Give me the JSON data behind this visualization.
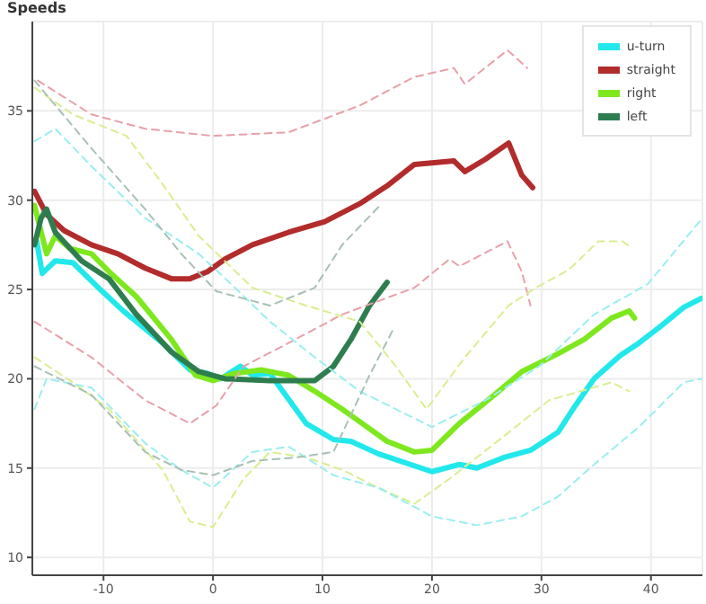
{
  "chart_data": {
    "type": "line",
    "title": "Speeds",
    "xlim": [
      -16.5,
      44.7
    ],
    "ylim": [
      9,
      40
    ],
    "xticks": [
      -10,
      0,
      10,
      20,
      30,
      40
    ],
    "yticks": [
      10,
      15,
      20,
      25,
      30,
      35
    ],
    "grid": true,
    "legend": "top right",
    "series": [
      {
        "name": "u-turn",
        "color": "#22e8ec",
        "x": [
          -16.1,
          -15.6,
          -14.4,
          -12.8,
          -10.3,
          -8.2,
          -4.6,
          -2.1,
          -0.5,
          0.7,
          2.5,
          3.6,
          5.2,
          8.5,
          11,
          12.6,
          15.1,
          20,
          22.5,
          24.1,
          26.6,
          29,
          31.5,
          33.1,
          34.8,
          37.2,
          38.9,
          41,
          43,
          44.6
        ],
        "values": [
          27.7,
          25.9,
          26.6,
          26.5,
          25,
          23.8,
          22,
          20.5,
          20.3,
          20,
          20.7,
          20.2,
          20.3,
          17.5,
          16.6,
          16.5,
          15.8,
          14.8,
          15.2,
          15,
          15.6,
          16,
          17,
          18.5,
          20,
          21.3,
          22,
          23,
          24,
          24.5
        ]
      },
      {
        "name": "straight",
        "color": "#b22c2c",
        "x": [
          -16.3,
          -15.2,
          -13.6,
          -11.1,
          -8.7,
          -6.2,
          -3.8,
          -2.1,
          -0.5,
          1.1,
          3.6,
          6.9,
          10.2,
          13.4,
          15.9,
          18.4,
          22,
          23,
          24.9,
          27,
          28.2,
          29.2
        ],
        "values": [
          30.5,
          29.2,
          28.3,
          27.5,
          27,
          26.2,
          25.6,
          25.6,
          26,
          26.7,
          27.5,
          28.2,
          28.8,
          29.8,
          30.8,
          32,
          32.2,
          31.6,
          32.3,
          33.2,
          31.4,
          30.7
        ]
      },
      {
        "name": "right",
        "color": "#7ee81e",
        "x": [
          -16.3,
          -15.2,
          -14.4,
          -13.1,
          -11.1,
          -9.5,
          -7,
          -3.8,
          -1.6,
          0,
          2,
          4.4,
          6.9,
          9.3,
          11.8,
          13.4,
          15.9,
          18.4,
          20,
          22.5,
          25.7,
          28.2,
          31.5,
          33.9,
          36.4,
          38,
          38.5
        ],
        "values": [
          29.7,
          27,
          28,
          27.3,
          27,
          26,
          24.6,
          22.2,
          20.2,
          19.9,
          20.3,
          20.5,
          20.2,
          19.3,
          18.3,
          17.6,
          16.5,
          15.9,
          16,
          17.5,
          19.1,
          20.4,
          21.4,
          22.2,
          23.4,
          23.8,
          23.4
        ]
      },
      {
        "name": "left",
        "color": "#2e7d4f",
        "x": [
          -16.3,
          -15.7,
          -15.2,
          -14.4,
          -12,
          -9.5,
          -7,
          -3.8,
          -1.3,
          1.1,
          5.2,
          9.3,
          11,
          12.6,
          14.3,
          15.9
        ],
        "values": [
          27.5,
          29,
          29.5,
          28.2,
          26.6,
          25.6,
          23.6,
          21.5,
          20.4,
          20,
          19.9,
          19.9,
          20.7,
          22.2,
          24.1,
          25.4
        ]
      },
      {
        "color": "#e8a0a8",
        "line_style": "dashed",
        "x": [
          -16,
          -11.1,
          -6.2,
          0,
          6.9,
          13.4,
          18.4,
          22,
          23,
          26.9,
          28.7
        ],
        "values": [
          36.7,
          34.8,
          34,
          33.6,
          33.8,
          35.3,
          36.9,
          37.4,
          36.5,
          38.4,
          37.4
        ]
      },
      {
        "color": "#e8a0a8",
        "line_style": "dashed",
        "x": [
          -16.3,
          -11.1,
          -6.2,
          -2.1,
          0.3,
          2.8,
          6.9,
          11.8,
          18.4,
          21.6,
          22.5,
          26.9,
          28.2,
          29
        ],
        "values": [
          23.2,
          21.2,
          18.8,
          17.5,
          18.5,
          20.7,
          22,
          23.6,
          25.1,
          26.7,
          26.3,
          27.7,
          26,
          24.1
        ]
      },
      {
        "color": "#d8ee90",
        "line_style": "dashed",
        "x": [
          -16.3,
          -12.8,
          -7.9,
          -4.6,
          -1.3,
          3.6,
          8.5,
          13.4,
          16.7,
          19.5,
          23,
          27,
          29.5,
          32.5,
          35.2,
          37.4,
          38.1
        ],
        "values": [
          36.3,
          34.8,
          33.6,
          30.9,
          28,
          25.1,
          24.1,
          23.2,
          20.7,
          18.3,
          21.2,
          24.1,
          25.1,
          26.1,
          27.7,
          27.7,
          27.4
        ]
      },
      {
        "color": "#d8ee90",
        "line_style": "dashed",
        "x": [
          -16.3,
          -12.8,
          -9.5,
          -4.6,
          -2.1,
          0,
          2.8,
          5.2,
          8.5,
          11.8,
          15.1,
          18.4,
          21.6,
          26.6,
          30.7,
          36.4,
          38
        ],
        "values": [
          21.2,
          19.8,
          18.3,
          14.9,
          12,
          11.7,
          14.4,
          15.9,
          15.6,
          14.9,
          13.9,
          13,
          14.4,
          16.8,
          18.8,
          19.8,
          19.3
        ]
      },
      {
        "color": "#9aeef0",
        "line_style": "dashed",
        "x": [
          -16.3,
          -14.4,
          -11.1,
          -6.2,
          -1.3,
          2,
          5.2,
          9.3,
          13.4,
          20,
          24.9,
          29.8,
          34.8,
          39.7,
          44.7
        ],
        "values": [
          33.3,
          34,
          31.9,
          29,
          27,
          25.1,
          23.2,
          21.2,
          19.3,
          17.3,
          18.8,
          20.7,
          23.6,
          25.3,
          29
        ]
      },
      {
        "color": "#9aeef0",
        "line_style": "dashed",
        "x": [
          -16.3,
          -15.2,
          -11.1,
          -6.2,
          -2.9,
          0,
          3.6,
          6.9,
          11,
          15.1,
          20,
          24.1,
          28.2,
          31.5,
          34.8,
          38.9,
          43,
          44.6
        ],
        "values": [
          18.3,
          20,
          19.5,
          16.4,
          14.9,
          13.9,
          15.9,
          16.2,
          14.6,
          13.9,
          12.3,
          11.8,
          12.3,
          13.4,
          15.2,
          17.3,
          19.8,
          20
        ]
      },
      {
        "color": "#a8c0b4",
        "line_style": "dashed",
        "x": [
          -16.3,
          -11.1,
          -6.2,
          -2.9,
          0.3,
          5.2,
          9.3,
          11.8,
          15.4
        ],
        "values": [
          36.7,
          32.9,
          29.5,
          27,
          24.9,
          24.1,
          25.1,
          27.5,
          29.8
        ]
      },
      {
        "color": "#a8c0b4",
        "line_style": "dashed",
        "x": [
          -16.3,
          -11.1,
          -6.2,
          -2.9,
          0,
          3.6,
          7.7,
          11,
          14.3,
          16.4
        ],
        "values": [
          20.7,
          19.1,
          15.9,
          14.9,
          14.6,
          15.4,
          15.6,
          15.9,
          20.2,
          22.7
        ]
      }
    ]
  }
}
